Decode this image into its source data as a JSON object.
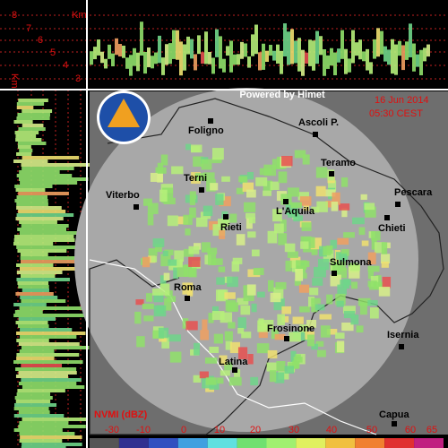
{
  "header": {
    "powered_by": "Powered by Himet",
    "date": "16 Jun 2014",
    "time": "05:30 CEST"
  },
  "profile": {
    "unit": "Km",
    "levels": [
      "8",
      "7",
      "6",
      "5",
      "4",
      "3"
    ],
    "side_unit": "Km"
  },
  "map": {
    "cities": [
      "Foligno",
      "Ascoli P.",
      "Teramo",
      "Terni",
      "Viterbo",
      "Pescara",
      "L'Aquila",
      "Rieti",
      "Chieti",
      "Sulmona",
      "Roma",
      "Frosinone",
      "Isernia",
      "Latina",
      "Capua"
    ]
  },
  "legend": {
    "title": "NVMI (dBZ)",
    "labels": [
      -30,
      -10,
      0,
      10,
      20,
      30,
      40,
      50,
      60,
      65
    ]
  }
}
